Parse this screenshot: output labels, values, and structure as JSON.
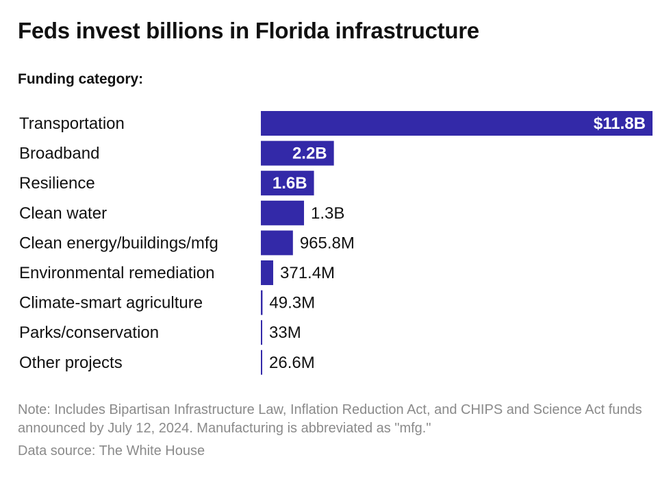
{
  "title": "Feds invest billions in Florida infrastructure",
  "subtitle": "Funding category:",
  "note": "Note: Includes Bipartisan Infrastructure Law, Inflation Reduction Act, and CHIPS and Science Act funds announced by July 12, 2024. Manufacturing is abbreviated as \"mfg.\"",
  "source": "Data source: The White House",
  "colors": {
    "bar": "#3329a8",
    "label_inside": "#ffffff",
    "label_outside": "#111111"
  },
  "chart_data": {
    "type": "bar",
    "orientation": "horizontal",
    "categories": [
      "Transportation",
      "Broadband",
      "Resilience",
      "Clean water",
      "Clean energy/buildings/mfg",
      "Environmental remediation",
      "Climate-smart agriculture",
      "Parks/conservation",
      "Other projects"
    ],
    "values": [
      11800000000,
      2200000000,
      1600000000,
      1300000000,
      965800000,
      371400000,
      49300000,
      33000000,
      26600000
    ],
    "data_labels": [
      "$11.8B",
      "2.2B",
      "1.6B",
      "1.3B",
      "965.8M",
      "371.4M",
      "49.3M",
      "33M",
      "26.6M"
    ],
    "label_inside": [
      true,
      true,
      true,
      false,
      false,
      false,
      false,
      false,
      false
    ],
    "xlim": [
      0,
      11800000000
    ],
    "grid": false,
    "legend": "none"
  }
}
